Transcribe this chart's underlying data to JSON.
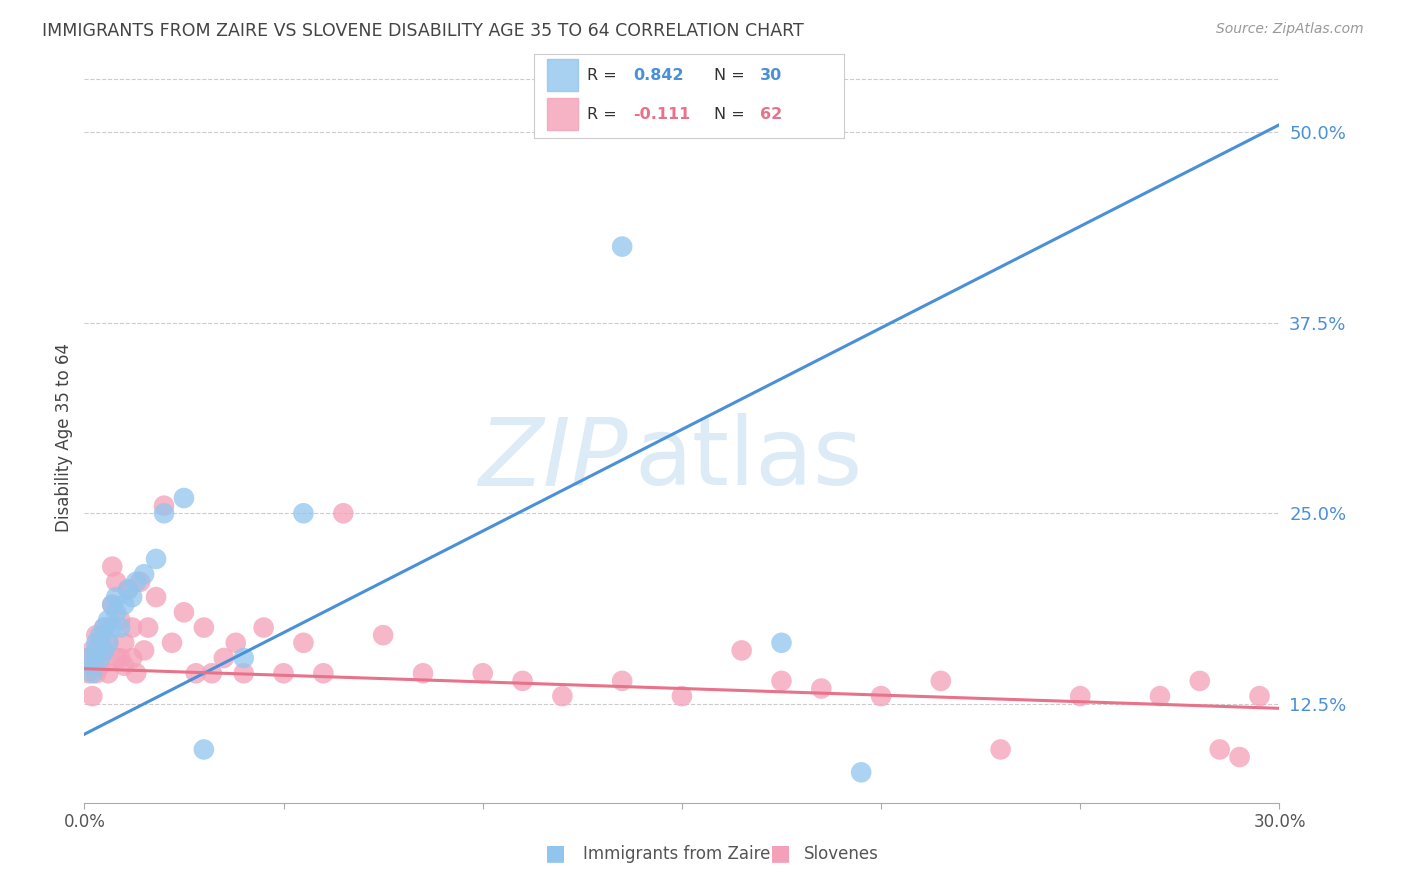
{
  "title": "IMMIGRANTS FROM ZAIRE VS SLOVENE DISABILITY AGE 35 TO 64 CORRELATION CHART",
  "source": "Source: ZipAtlas.com",
  "ylabel": "Disability Age 35 to 64",
  "xlabel_blue": "Immigrants from Zaire",
  "xlabel_pink": "Slovenes",
  "xmin": 0.0,
  "xmax": 0.3,
  "ymin": 0.06,
  "ymax": 0.54,
  "yticks": [
    0.125,
    0.25,
    0.375,
    0.5
  ],
  "ytick_labels": [
    "12.5%",
    "25.0%",
    "37.5%",
    "50.0%"
  ],
  "xticks": [
    0.0,
    0.05,
    0.1,
    0.15,
    0.2,
    0.25,
    0.3
  ],
  "xtick_labels": [
    "0.0%",
    "",
    "",
    "",
    "",
    "",
    "30.0%"
  ],
  "blue_R": 0.842,
  "blue_N": 30,
  "pink_R": -0.111,
  "pink_N": 62,
  "blue_color": "#92C5EE",
  "pink_color": "#F4A0B8",
  "blue_line_color": "#4A90D9",
  "pink_line_color": "#E8728A",
  "watermark_zip": "ZIP",
  "watermark_atlas": "atlas",
  "background_color": "#ffffff",
  "grid_color": "#cccccc",
  "title_color": "#444444",
  "axis_label_color": "#555555",
  "right_tick_color": "#4A90D9",
  "blue_line_x0": 0.0,
  "blue_line_y0": 0.105,
  "blue_line_x1": 0.3,
  "blue_line_y1": 0.505,
  "pink_line_x0": 0.0,
  "pink_line_y0": 0.148,
  "pink_line_x1": 0.3,
  "pink_line_y1": 0.122,
  "blue_scatter_x": [
    0.001,
    0.002,
    0.002,
    0.003,
    0.003,
    0.004,
    0.004,
    0.005,
    0.005,
    0.006,
    0.006,
    0.007,
    0.007,
    0.008,
    0.008,
    0.009,
    0.01,
    0.011,
    0.012,
    0.013,
    0.015,
    0.018,
    0.02,
    0.025,
    0.03,
    0.04,
    0.055,
    0.135,
    0.175,
    0.195
  ],
  "blue_scatter_y": [
    0.155,
    0.15,
    0.145,
    0.16,
    0.165,
    0.155,
    0.17,
    0.16,
    0.175,
    0.165,
    0.18,
    0.175,
    0.19,
    0.185,
    0.195,
    0.175,
    0.19,
    0.2,
    0.195,
    0.205,
    0.21,
    0.22,
    0.25,
    0.26,
    0.095,
    0.155,
    0.25,
    0.425,
    0.165,
    0.08
  ],
  "pink_scatter_x": [
    0.001,
    0.001,
    0.002,
    0.002,
    0.003,
    0.003,
    0.003,
    0.004,
    0.004,
    0.005,
    0.005,
    0.006,
    0.006,
    0.007,
    0.007,
    0.008,
    0.008,
    0.009,
    0.009,
    0.01,
    0.01,
    0.011,
    0.012,
    0.012,
    0.013,
    0.014,
    0.015,
    0.016,
    0.018,
    0.02,
    0.022,
    0.025,
    0.028,
    0.03,
    0.032,
    0.035,
    0.038,
    0.04,
    0.045,
    0.05,
    0.055,
    0.06,
    0.065,
    0.075,
    0.085,
    0.1,
    0.11,
    0.12,
    0.135,
    0.15,
    0.165,
    0.175,
    0.185,
    0.2,
    0.215,
    0.23,
    0.25,
    0.27,
    0.28,
    0.285,
    0.29,
    0.295
  ],
  "pink_scatter_y": [
    0.145,
    0.155,
    0.16,
    0.13,
    0.17,
    0.155,
    0.145,
    0.165,
    0.15,
    0.175,
    0.16,
    0.145,
    0.165,
    0.215,
    0.19,
    0.205,
    0.155,
    0.18,
    0.155,
    0.165,
    0.15,
    0.2,
    0.175,
    0.155,
    0.145,
    0.205,
    0.16,
    0.175,
    0.195,
    0.255,
    0.165,
    0.185,
    0.145,
    0.175,
    0.145,
    0.155,
    0.165,
    0.145,
    0.175,
    0.145,
    0.165,
    0.145,
    0.25,
    0.17,
    0.145,
    0.145,
    0.14,
    0.13,
    0.14,
    0.13,
    0.16,
    0.14,
    0.135,
    0.13,
    0.14,
    0.095,
    0.13,
    0.13,
    0.14,
    0.095,
    0.09,
    0.13
  ]
}
